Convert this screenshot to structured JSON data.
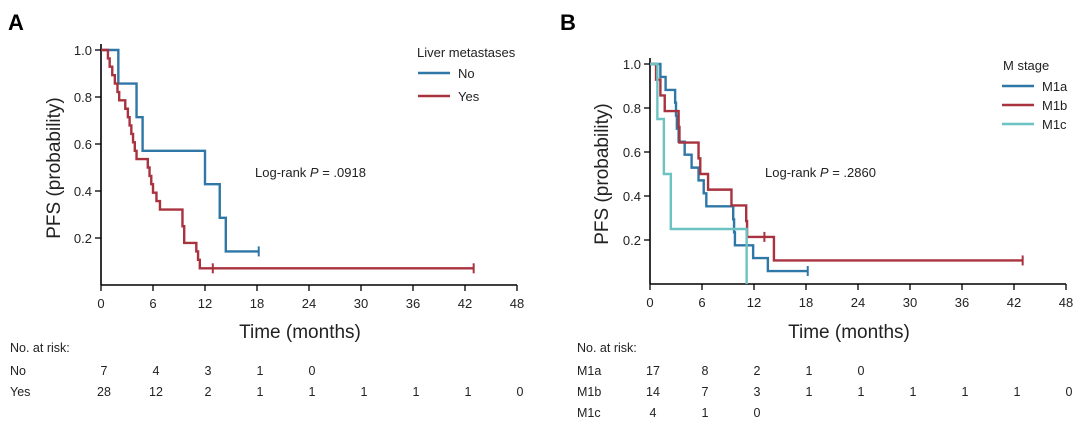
{
  "chart_data": [
    {
      "type": "line",
      "subtype": "kaplan-meier",
      "panel_label": "A",
      "xlabel": "Time (months)",
      "ylabel": "PFS (probability)",
      "xlim": [
        0,
        48
      ],
      "ylim": [
        0,
        1.0
      ],
      "x_ticks": [
        "0",
        "6",
        "12",
        "18",
        "24",
        "30",
        "36",
        "42",
        "48"
      ],
      "y_ticks": [
        "0.2",
        "0.4",
        "0.6",
        "0.8",
        "1.0"
      ],
      "legend_title": "Liver metastases",
      "legend_position": "top-right",
      "annotation": {
        "prefix": "Log-rank ",
        "p": "P",
        "value": " = .0918"
      },
      "at_risk_title": "No. at risk:",
      "series": [
        {
          "name": "No",
          "color": "#2e77a6",
          "steps": [
            [
              0,
              1.0
            ],
            [
              2.0,
              0.857
            ],
            [
              4.1,
              0.714
            ],
            [
              4.8,
              0.571
            ],
            [
              12.0,
              0.429
            ],
            [
              13.7,
              0.286
            ],
            [
              14.4,
              0.143
            ],
            [
              18.2,
              0.143
            ]
          ],
          "censored": [
            [
              18.2,
              0.143
            ]
          ],
          "at_risk": [
            "7",
            "4",
            "3",
            "1",
            "0"
          ]
        },
        {
          "name": "Yes",
          "color": "#a8323e",
          "steps": [
            [
              0,
              1.0
            ],
            [
              0.8,
              0.964
            ],
            [
              1.0,
              0.929
            ],
            [
              1.3,
              0.893
            ],
            [
              1.6,
              0.857
            ],
            [
              1.9,
              0.821
            ],
            [
              2.1,
              0.786
            ],
            [
              2.8,
              0.75
            ],
            [
              3.1,
              0.714
            ],
            [
              3.3,
              0.679
            ],
            [
              3.5,
              0.643
            ],
            [
              3.7,
              0.607
            ],
            [
              3.9,
              0.571
            ],
            [
              4.1,
              0.536
            ],
            [
              5.4,
              0.5
            ],
            [
              5.6,
              0.464
            ],
            [
              5.8,
              0.429
            ],
            [
              6.0,
              0.393
            ],
            [
              6.4,
              0.357
            ],
            [
              6.8,
              0.321
            ],
            [
              9.4,
              0.25
            ],
            [
              9.6,
              0.179
            ],
            [
              11.0,
              0.143
            ],
            [
              11.2,
              0.107
            ],
            [
              11.4,
              0.071
            ],
            [
              43.0,
              0.071
            ]
          ],
          "censored": [
            [
              12.9,
              0.071
            ],
            [
              43.0,
              0.071
            ]
          ],
          "at_risk": [
            "28",
            "12",
            "2",
            "1",
            "1",
            "1",
            "1",
            "1",
            "0"
          ]
        }
      ]
    },
    {
      "type": "line",
      "subtype": "kaplan-meier",
      "panel_label": "B",
      "xlabel": "Time (months)",
      "ylabel": "PFS (probability)",
      "xlim": [
        0,
        48
      ],
      "ylim": [
        0,
        1.0
      ],
      "x_ticks": [
        "0",
        "6",
        "12",
        "18",
        "24",
        "30",
        "36",
        "42",
        "48"
      ],
      "y_ticks": [
        "0.2",
        "0.4",
        "0.6",
        "0.8",
        "1.0"
      ],
      "legend_title": "M stage",
      "legend_position": "top-right",
      "annotation": {
        "prefix": "Log-rank ",
        "p": "P",
        "value": " = .2860"
      },
      "at_risk_title": "No. at risk:",
      "series": [
        {
          "name": "M1a",
          "color": "#2e77a6",
          "steps": [
            [
              0,
              1.0
            ],
            [
              1.2,
              0.941
            ],
            [
              1.8,
              0.882
            ],
            [
              2.9,
              0.824
            ],
            [
              3.0,
              0.765
            ],
            [
              3.1,
              0.706
            ],
            [
              3.3,
              0.647
            ],
            [
              4.0,
              0.588
            ],
            [
              4.8,
              0.529
            ],
            [
              5.6,
              0.471
            ],
            [
              6.2,
              0.412
            ],
            [
              6.5,
              0.353
            ],
            [
              9.6,
              0.294
            ],
            [
              9.7,
              0.235
            ],
            [
              9.8,
              0.176
            ],
            [
              11.9,
              0.118
            ],
            [
              13.6,
              0.059
            ],
            [
              18.2,
              0.059
            ]
          ],
          "censored": [
            [
              18.2,
              0.059
            ]
          ],
          "at_risk": [
            "17",
            "8",
            "2",
            "1",
            "0"
          ]
        },
        {
          "name": "M1b",
          "color": "#a8323e",
          "steps": [
            [
              0,
              1.0
            ],
            [
              0.7,
              0.929
            ],
            [
              1.2,
              0.857
            ],
            [
              1.7,
              0.786
            ],
            [
              3.3,
              0.714
            ],
            [
              3.4,
              0.643
            ],
            [
              5.6,
              0.571
            ],
            [
              5.8,
              0.5
            ],
            [
              6.7,
              0.429
            ],
            [
              9.4,
              0.357
            ],
            [
              11.1,
              0.286
            ],
            [
              11.2,
              0.214
            ],
            [
              14.3,
              0.107
            ],
            [
              43.0,
              0.107
            ]
          ],
          "censored": [
            [
              13.2,
              0.214
            ],
            [
              43.0,
              0.107
            ]
          ],
          "at_risk": [
            "14",
            "7",
            "3",
            "1",
            "1",
            "1",
            "1",
            "1",
            "0"
          ]
        },
        {
          "name": "M1c",
          "color": "#6cc3c2",
          "steps": [
            [
              0,
              1.0
            ],
            [
              0.85,
              0.75
            ],
            [
              1.6,
              0.5
            ],
            [
              2.4,
              0.25
            ],
            [
              11.15,
              0.0
            ]
          ],
          "censored": [],
          "at_risk": [
            "4",
            "1",
            "0"
          ]
        }
      ]
    }
  ]
}
